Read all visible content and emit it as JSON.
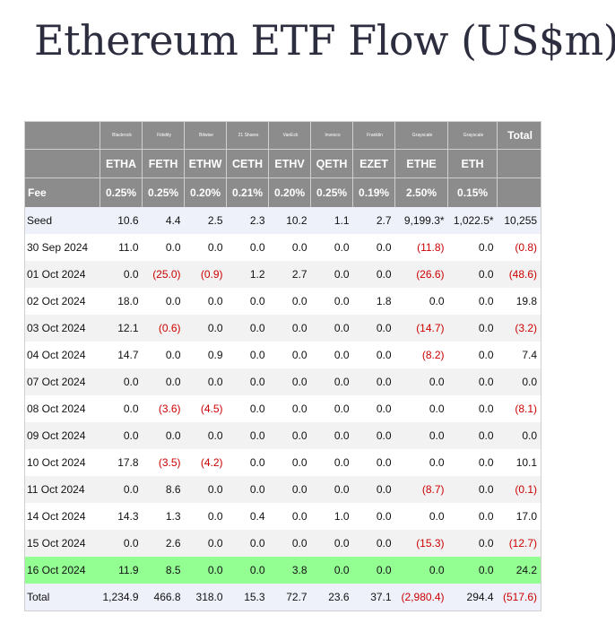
{
  "page": {
    "title": "Ethereum ETF Flow (US$m)"
  },
  "chart_data": {
    "type": "table",
    "title": "Ethereum ETF Flow (US$m)",
    "columns": [
      {
        "issuer": "Blackrock",
        "ticker": "ETHA",
        "fee": "0.25%"
      },
      {
        "issuer": "Fidelity",
        "ticker": "FETH",
        "fee": "0.25%"
      },
      {
        "issuer": "Bitwise",
        "ticker": "ETHW",
        "fee": "0.20%"
      },
      {
        "issuer": "21 Shares",
        "ticker": "CETH",
        "fee": "0.21%"
      },
      {
        "issuer": "VanEck",
        "ticker": "ETHV",
        "fee": "0.20%"
      },
      {
        "issuer": "Invesco",
        "ticker": "QETH",
        "fee": "0.25%"
      },
      {
        "issuer": "Franklin",
        "ticker": "EZET",
        "fee": "0.19%"
      },
      {
        "issuer": "Grayscale",
        "ticker": "ETHE",
        "fee": "2.50%"
      },
      {
        "issuer": "Grayscale",
        "ticker": "ETH",
        "fee": "0.15%"
      }
    ],
    "total_header": "Total",
    "fee_label": "Fee",
    "rows": [
      {
        "label": "Seed",
        "values": [
          "10.6",
          "4.4",
          "2.5",
          "2.3",
          "10.2",
          "1.1",
          "2.7",
          "9,199.3*",
          "1,022.5*",
          "10,255"
        ]
      },
      {
        "label": "30 Sep 2024",
        "values": [
          "11.0",
          "0.0",
          "0.0",
          "0.0",
          "0.0",
          "0.0",
          "0.0",
          "(11.8)",
          "0.0",
          "(0.8)"
        ]
      },
      {
        "label": "01 Oct 2024",
        "values": [
          "0.0",
          "(25.0)",
          "(0.9)",
          "1.2",
          "2.7",
          "0.0",
          "0.0",
          "(26.6)",
          "0.0",
          "(48.6)"
        ]
      },
      {
        "label": "02 Oct 2024",
        "values": [
          "18.0",
          "0.0",
          "0.0",
          "0.0",
          "0.0",
          "0.0",
          "1.8",
          "0.0",
          "0.0",
          "19.8"
        ]
      },
      {
        "label": "03 Oct 2024",
        "values": [
          "12.1",
          "(0.6)",
          "0.0",
          "0.0",
          "0.0",
          "0.0",
          "0.0",
          "(14.7)",
          "0.0",
          "(3.2)"
        ]
      },
      {
        "label": "04 Oct 2024",
        "values": [
          "14.7",
          "0.0",
          "0.9",
          "0.0",
          "0.0",
          "0.0",
          "0.0",
          "(8.2)",
          "0.0",
          "7.4"
        ]
      },
      {
        "label": "07 Oct 2024",
        "values": [
          "0.0",
          "0.0",
          "0.0",
          "0.0",
          "0.0",
          "0.0",
          "0.0",
          "0.0",
          "0.0",
          "0.0"
        ]
      },
      {
        "label": "08 Oct 2024",
        "values": [
          "0.0",
          "(3.6)",
          "(4.5)",
          "0.0",
          "0.0",
          "0.0",
          "0.0",
          "0.0",
          "0.0",
          "(8.1)"
        ]
      },
      {
        "label": "09 Oct 2024",
        "values": [
          "0.0",
          "0.0",
          "0.0",
          "0.0",
          "0.0",
          "0.0",
          "0.0",
          "0.0",
          "0.0",
          "0.0"
        ]
      },
      {
        "label": "10 Oct 2024",
        "values": [
          "17.8",
          "(3.5)",
          "(4.2)",
          "0.0",
          "0.0",
          "0.0",
          "0.0",
          "0.0",
          "0.0",
          "10.1"
        ]
      },
      {
        "label": "11 Oct 2024",
        "values": [
          "0.0",
          "8.6",
          "0.0",
          "0.0",
          "0.0",
          "0.0",
          "0.0",
          "(8.7)",
          "0.0",
          "(0.1)"
        ]
      },
      {
        "label": "14 Oct 2024",
        "values": [
          "14.3",
          "1.3",
          "0.0",
          "0.4",
          "0.0",
          "1.0",
          "0.0",
          "0.0",
          "0.0",
          "17.0"
        ]
      },
      {
        "label": "15 Oct 2024",
        "values": [
          "0.0",
          "2.6",
          "0.0",
          "0.0",
          "0.0",
          "0.0",
          "0.0",
          "(15.3)",
          "0.0",
          "(12.7)"
        ]
      },
      {
        "label": "16 Oct 2024",
        "values": [
          "11.9",
          "8.5",
          "0.0",
          "0.0",
          "3.8",
          "0.0",
          "0.0",
          "0.0",
          "0.0",
          "24.2"
        ]
      },
      {
        "label": "Total",
        "values": [
          "1,234.9",
          "466.8",
          "318.0",
          "15.3",
          "72.7",
          "23.6",
          "37.1",
          "(2,980.4)",
          "294.4",
          "(517.6)"
        ]
      }
    ],
    "highlight_row": "16 Oct 2024",
    "negative_color": "#cc0000",
    "header_color": "#8c8c8c",
    "highlight_color": "#93ff93"
  }
}
